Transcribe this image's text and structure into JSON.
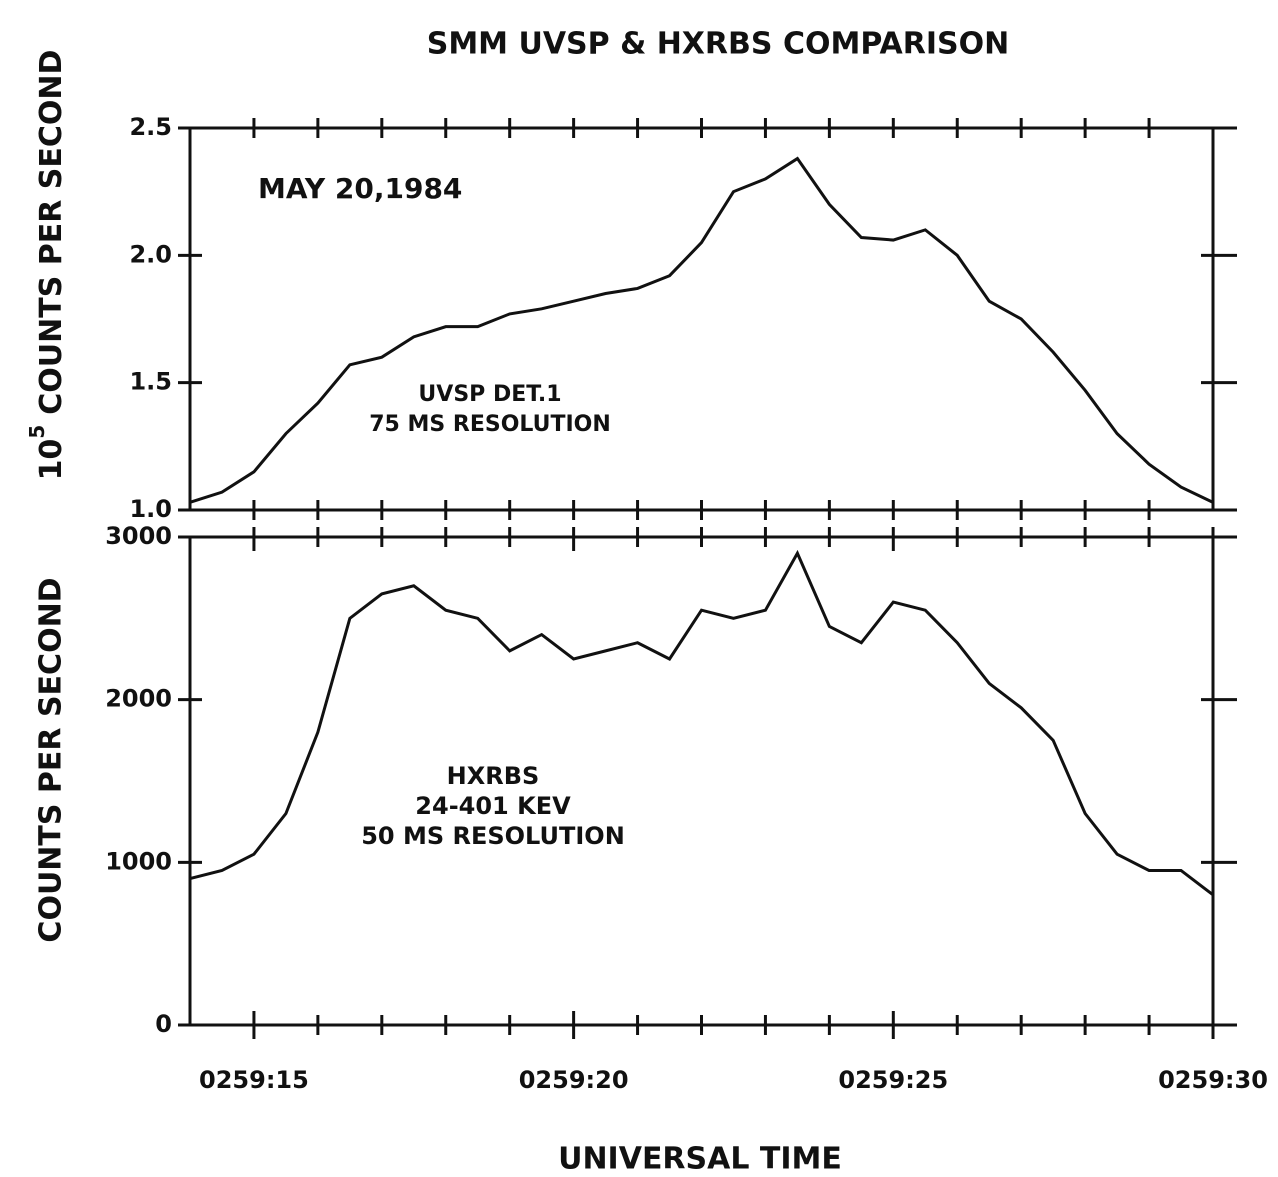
{
  "chart_data": [
    {
      "type": "line",
      "title": "SMM UVSP & HXRBS COMPARISON",
      "ylabel": {
        "base": "10",
        "exponent": "5",
        "text": "COUNTS PER SECOND"
      },
      "annotations": [
        "MAY 20,1984",
        "UVSP DET.1",
        "75 MS RESOLUTION"
      ],
      "x": [
        14,
        14.5,
        15,
        15.5,
        16,
        16.5,
        17,
        17.5,
        18,
        18.5,
        19,
        19.5,
        20,
        20.5,
        21,
        21.5,
        22,
        22.5,
        23,
        23.5,
        24,
        24.5,
        25,
        25.5,
        26,
        26.5,
        27,
        27.5,
        28,
        28.5,
        29,
        29.5,
        30
      ],
      "series": [
        {
          "color": "#111111",
          "values": [
            1.03,
            1.07,
            1.15,
            1.3,
            1.42,
            1.57,
            1.6,
            1.68,
            1.72,
            1.72,
            1.77,
            1.79,
            1.82,
            1.85,
            1.87,
            1.92,
            2.05,
            2.25,
            2.3,
            2.38,
            2.2,
            2.07,
            2.06,
            2.1,
            2.0,
            1.82,
            1.75,
            1.62,
            1.47,
            1.3,
            1.18,
            1.09,
            1.03
          ]
        }
      ],
      "xlim": [
        14,
        30
      ],
      "xticks_minor": [
        15,
        16,
        17,
        18,
        19,
        20,
        21,
        22,
        23,
        24,
        25,
        26,
        27,
        28,
        29
      ],
      "ylim": [
        1,
        2.5
      ],
      "yticks": [
        {
          "value": 1,
          "label": "1.0"
        },
        1.5,
        {
          "value": 2,
          "label": "2.0"
        },
        2.5
      ]
    },
    {
      "type": "line",
      "xlabel": "UNIVERSAL TIME",
      "ylabel": "COUNTS PER SECOND",
      "annotations": [
        "HXRBS",
        "24-401 KEV",
        "50 MS RESOLUTION"
      ],
      "x": [
        14,
        14.5,
        15,
        15.5,
        16,
        16.5,
        17,
        17.5,
        18,
        18.5,
        19,
        19.5,
        20,
        20.5,
        21,
        21.5,
        22,
        22.5,
        23,
        23.5,
        24,
        24.5,
        25,
        25.5,
        26,
        26.5,
        27,
        27.5,
        28,
        28.5,
        29,
        29.5,
        30
      ],
      "series": [
        {
          "color": "#111111",
          "values": [
            900,
            950,
            1050,
            1300,
            1800,
            2500,
            2650,
            2700,
            2550,
            2500,
            2300,
            2400,
            2250,
            2300,
            2350,
            2250,
            2550,
            2500,
            2550,
            2900,
            2450,
            2350,
            2600,
            2550,
            2350,
            2100,
            1950,
            1750,
            1300,
            1050,
            950,
            950,
            800
          ]
        }
      ],
      "xlim": [
        14,
        30
      ],
      "xticks": [
        {
          "value": 15,
          "label": "0259:15"
        },
        {
          "value": 20,
          "label": "0259:20"
        },
        {
          "value": 25,
          "label": "0259:25"
        },
        {
          "value": 30,
          "label": "0259:30"
        }
      ],
      "xticks_minor": [
        16,
        17,
        18,
        19,
        21,
        22,
        23,
        24,
        26,
        27,
        28,
        29
      ],
      "ylim": [
        0,
        3000
      ],
      "yticks": [
        0,
        1000,
        2000,
        3000
      ]
    }
  ]
}
